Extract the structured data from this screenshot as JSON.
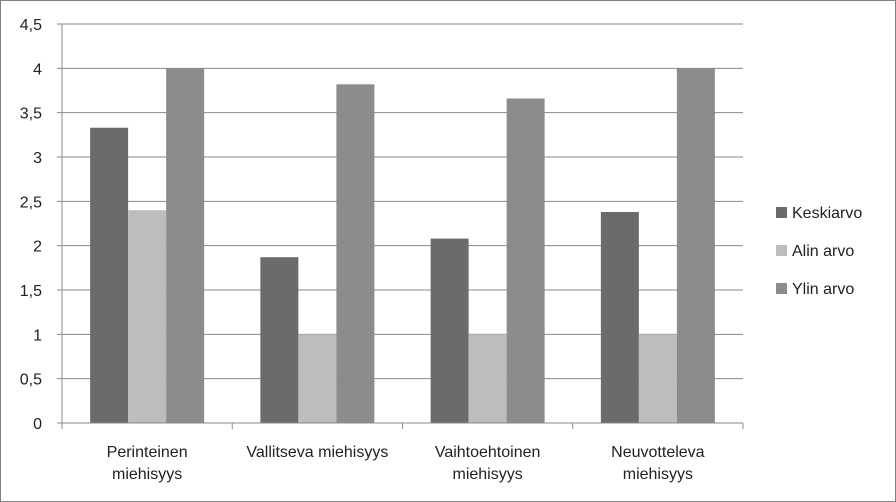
{
  "chart_data": {
    "type": "bar",
    "categories": [
      [
        "Perinteinen",
        "miehisyys"
      ],
      [
        "Vallitseva miehisyys"
      ],
      [
        "Vaihtoehtoinen",
        "miehisyys"
      ],
      [
        "Neuvotteleva",
        "miehisyys"
      ]
    ],
    "series": [
      {
        "name": "Keskiarvo",
        "color": "#6b6b6b",
        "values": [
          3.33,
          1.87,
          2.08,
          2.38
        ]
      },
      {
        "name": "Alin arvo",
        "color": "#bdbdbd",
        "values": [
          2.4,
          1.0,
          1.0,
          1.0
        ]
      },
      {
        "name": "Ylin arvo",
        "color": "#8c8c8c",
        "values": [
          4.0,
          3.82,
          3.66,
          4.0
        ]
      }
    ],
    "ylim": [
      0,
      4.5
    ],
    "yticks": [
      "0",
      "0,5",
      "1",
      "1,5",
      "2",
      "2,5",
      "3",
      "3,5",
      "4",
      "4,5"
    ],
    "ytick_values": [
      0,
      0.5,
      1,
      1.5,
      2,
      2.5,
      3,
      3.5,
      4,
      4.5
    ],
    "grid": true,
    "legend_position": "right"
  }
}
